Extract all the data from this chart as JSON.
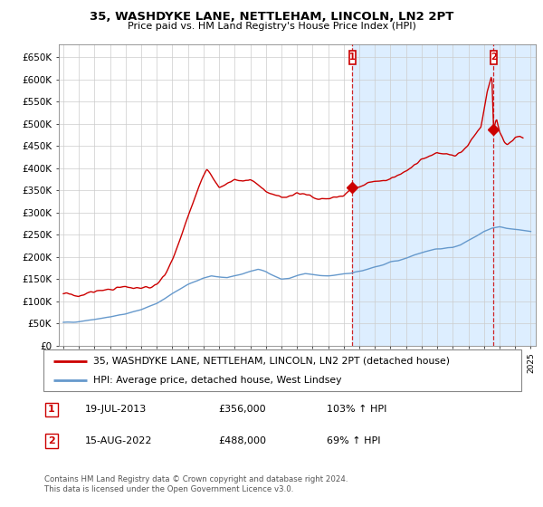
{
  "title": "35, WASHDYKE LANE, NETTLEHAM, LINCOLN, LN2 2PT",
  "subtitle": "Price paid vs. HM Land Registry's House Price Index (HPI)",
  "ylabel_ticks": [
    "£0",
    "£50K",
    "£100K",
    "£150K",
    "£200K",
    "£250K",
    "£300K",
    "£350K",
    "£400K",
    "£450K",
    "£500K",
    "£550K",
    "£600K",
    "£650K"
  ],
  "ytick_values": [
    0,
    50000,
    100000,
    150000,
    200000,
    250000,
    300000,
    350000,
    400000,
    450000,
    500000,
    550000,
    600000,
    650000
  ],
  "ylim": [
    0,
    680000
  ],
  "xlim_left": 1994.7,
  "xlim_right": 2025.3,
  "house_color": "#cc0000",
  "hpi_color": "#6699cc",
  "shade_color": "#ddeeff",
  "annotation_color": "#cc0000",
  "grid_color": "#cccccc",
  "legend_house": "35, WASHDYKE LANE, NETTLEHAM, LINCOLN, LN2 2PT (detached house)",
  "legend_hpi": "HPI: Average price, detached house, West Lindsey",
  "sale1_label": "1",
  "sale1_date": "19-JUL-2013",
  "sale1_price": "£356,000",
  "sale1_hpi": "103% ↑ HPI",
  "sale2_label": "2",
  "sale2_date": "15-AUG-2022",
  "sale2_price": "£488,000",
  "sale2_hpi": "69% ↑ HPI",
  "footer": "Contains HM Land Registry data © Crown copyright and database right 2024.\nThis data is licensed under the Open Government Licence v3.0.",
  "sale1_x": 2013.54,
  "sale1_y": 356000,
  "sale2_x": 2022.62,
  "sale2_y": 488000,
  "dashed_line1_x": 2013.54,
  "dashed_line2_x": 2022.62,
  "hpi_anchors": [
    [
      1995.0,
      52000
    ],
    [
      1996.0,
      55000
    ],
    [
      1997.0,
      60000
    ],
    [
      1998.0,
      65000
    ],
    [
      1999.0,
      72000
    ],
    [
      2000.0,
      82000
    ],
    [
      2001.0,
      95000
    ],
    [
      2002.0,
      118000
    ],
    [
      2003.0,
      138000
    ],
    [
      2004.0,
      152000
    ],
    [
      2004.5,
      158000
    ],
    [
      2005.0,
      155000
    ],
    [
      2005.5,
      152000
    ],
    [
      2006.0,
      158000
    ],
    [
      2006.5,
      162000
    ],
    [
      2007.0,
      168000
    ],
    [
      2007.5,
      172000
    ],
    [
      2008.0,
      168000
    ],
    [
      2008.5,
      158000
    ],
    [
      2009.0,
      150000
    ],
    [
      2009.5,
      152000
    ],
    [
      2010.0,
      158000
    ],
    [
      2010.5,
      162000
    ],
    [
      2011.0,
      160000
    ],
    [
      2011.5,
      158000
    ],
    [
      2012.0,
      158000
    ],
    [
      2012.5,
      160000
    ],
    [
      2013.0,
      162000
    ],
    [
      2013.5,
      163000
    ],
    [
      2014.0,
      168000
    ],
    [
      2014.5,
      172000
    ],
    [
      2015.0,
      178000
    ],
    [
      2015.5,
      182000
    ],
    [
      2016.0,
      188000
    ],
    [
      2016.5,
      192000
    ],
    [
      2017.0,
      198000
    ],
    [
      2017.5,
      205000
    ],
    [
      2018.0,
      210000
    ],
    [
      2018.5,
      215000
    ],
    [
      2019.0,
      218000
    ],
    [
      2019.5,
      220000
    ],
    [
      2020.0,
      222000
    ],
    [
      2020.5,
      228000
    ],
    [
      2021.0,
      238000
    ],
    [
      2021.5,
      248000
    ],
    [
      2022.0,
      258000
    ],
    [
      2022.5,
      265000
    ],
    [
      2023.0,
      268000
    ],
    [
      2023.5,
      265000
    ],
    [
      2024.0,
      262000
    ],
    [
      2024.5,
      260000
    ],
    [
      2025.0,
      258000
    ]
  ],
  "house_anchors": [
    [
      1995.0,
      118000
    ],
    [
      1995.5,
      115000
    ],
    [
      1996.0,
      112000
    ],
    [
      1996.5,
      118000
    ],
    [
      1997.0,
      122000
    ],
    [
      1997.5,
      125000
    ],
    [
      1998.0,
      128000
    ],
    [
      1998.5,
      130000
    ],
    [
      1999.0,
      132000
    ],
    [
      1999.5,
      130000
    ],
    [
      2000.0,
      128000
    ],
    [
      2000.5,
      132000
    ],
    [
      2001.0,
      138000
    ],
    [
      2001.5,
      158000
    ],
    [
      2002.0,
      195000
    ],
    [
      2002.5,
      240000
    ],
    [
      2003.0,
      290000
    ],
    [
      2003.5,
      340000
    ],
    [
      2004.0,
      385000
    ],
    [
      2004.2,
      400000
    ],
    [
      2004.5,
      385000
    ],
    [
      2005.0,
      355000
    ],
    [
      2005.5,
      365000
    ],
    [
      2006.0,
      375000
    ],
    [
      2006.5,
      370000
    ],
    [
      2007.0,
      375000
    ],
    [
      2007.5,
      362000
    ],
    [
      2008.0,
      350000
    ],
    [
      2008.5,
      340000
    ],
    [
      2009.0,
      335000
    ],
    [
      2009.5,
      340000
    ],
    [
      2010.0,
      345000
    ],
    [
      2010.5,
      342000
    ],
    [
      2011.0,
      335000
    ],
    [
      2011.5,
      330000
    ],
    [
      2012.0,
      332000
    ],
    [
      2012.5,
      335000
    ],
    [
      2013.0,
      340000
    ],
    [
      2013.54,
      356000
    ],
    [
      2014.0,
      358000
    ],
    [
      2014.5,
      365000
    ],
    [
      2015.0,
      370000
    ],
    [
      2015.5,
      372000
    ],
    [
      2016.0,
      375000
    ],
    [
      2016.5,
      385000
    ],
    [
      2017.0,
      395000
    ],
    [
      2017.5,
      405000
    ],
    [
      2018.0,
      418000
    ],
    [
      2018.5,
      428000
    ],
    [
      2019.0,
      435000
    ],
    [
      2019.5,
      432000
    ],
    [
      2020.0,
      428000
    ],
    [
      2020.5,
      435000
    ],
    [
      2021.0,
      455000
    ],
    [
      2021.5,
      478000
    ],
    [
      2021.8,
      495000
    ],
    [
      2022.0,
      530000
    ],
    [
      2022.2,
      570000
    ],
    [
      2022.4,
      595000
    ],
    [
      2022.5,
      610000
    ],
    [
      2022.62,
      488000
    ],
    [
      2022.8,
      510000
    ],
    [
      2023.0,
      480000
    ],
    [
      2023.3,
      460000
    ],
    [
      2023.5,
      455000
    ],
    [
      2023.8,
      462000
    ],
    [
      2024.0,
      468000
    ],
    [
      2024.3,
      472000
    ],
    [
      2024.5,
      470000
    ]
  ]
}
